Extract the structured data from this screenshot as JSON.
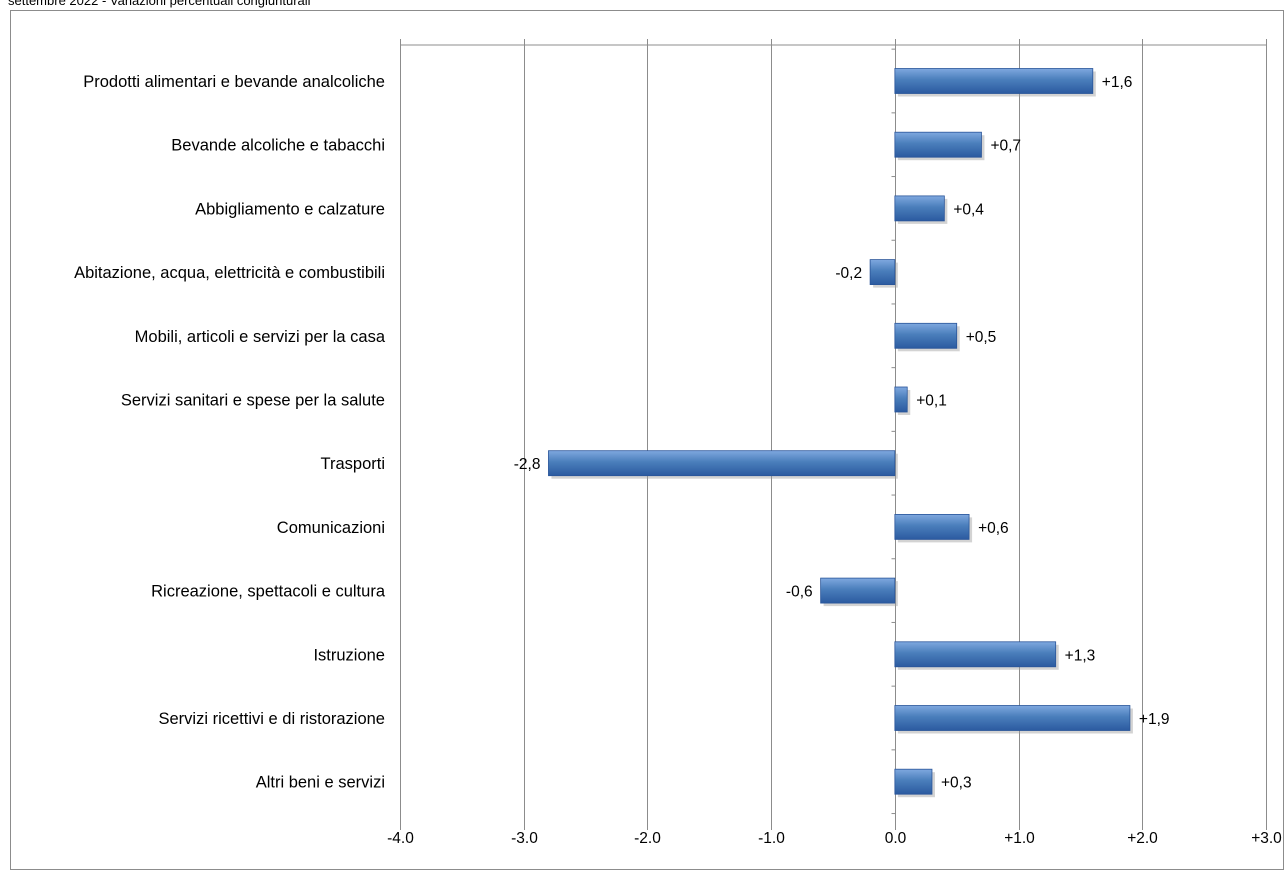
{
  "subtitle": "settembre 2022 - Variazioni percentuali congiunturali",
  "chart_data": {
    "type": "bar",
    "orientation": "horizontal",
    "categories": [
      "Prodotti alimentari e bevande analcoliche",
      "Bevande alcoliche e tabacchi",
      "Abbigliamento e calzature",
      "Abitazione, acqua, elettricità e combustibili",
      "Mobili, articoli e servizi per la casa",
      "Servizi sanitari e spese per la salute",
      "Trasporti",
      "Comunicazioni",
      "Ricreazione, spettacoli e cultura",
      "Istruzione",
      "Servizi ricettivi e di ristorazione",
      "Altri beni e servizi"
    ],
    "values": [
      1.6,
      0.7,
      0.4,
      -0.2,
      0.5,
      0.1,
      -2.8,
      0.6,
      -0.6,
      1.3,
      1.9,
      0.3
    ],
    "value_labels": [
      "+1,6",
      "+0,7",
      "+0,4",
      "-0,2",
      "+0,5",
      "+0,1",
      "-2,8",
      "+0,6",
      "-0,6",
      "+1,3",
      "+1,9",
      "+0,3"
    ],
    "xlim": [
      -4.0,
      3.0
    ],
    "xticks": [
      -4.0,
      -3.0,
      -2.0,
      -1.0,
      0.0,
      1.0,
      2.0,
      3.0
    ],
    "xtick_labels": [
      "-4.0",
      "-3.0",
      "-2.0",
      "-1.0",
      "0.0",
      "+1.0",
      "+2.0",
      "+3.0"
    ],
    "grid": true,
    "bar_color": "#4a7ebb",
    "bar_color_light": "#7fa8df",
    "bar_color_dark": "#2b5aa0"
  }
}
